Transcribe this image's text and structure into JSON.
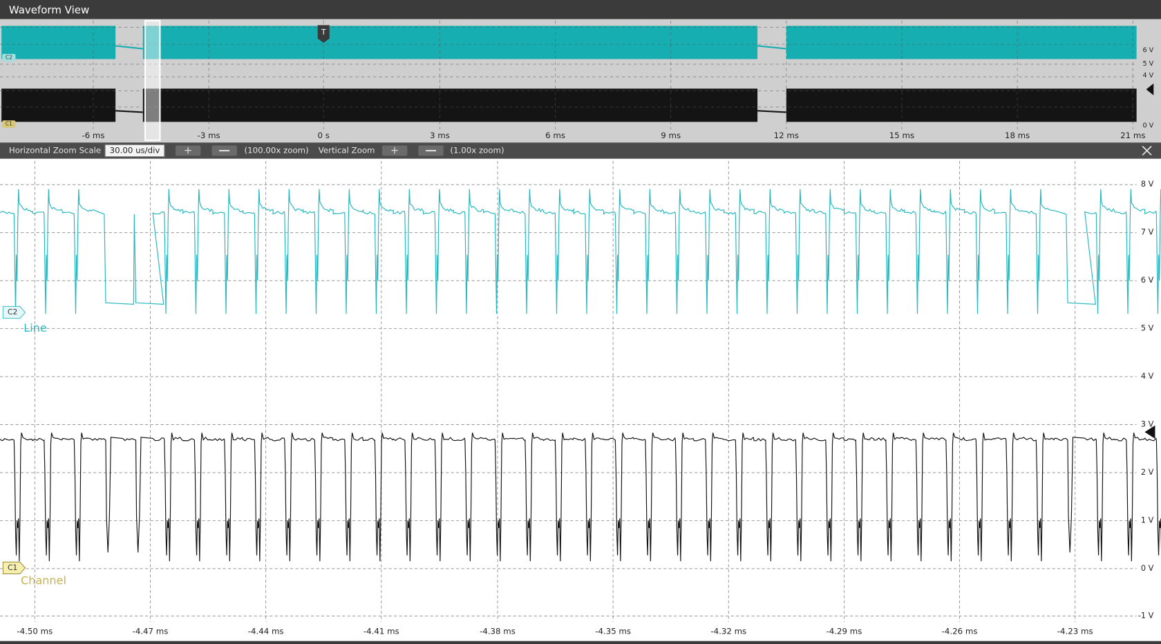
{
  "window": {
    "title": "Waveform View"
  },
  "overview": {
    "x_labels": [
      "-6 ms",
      "-3 ms",
      "0 s",
      "3 ms",
      "6 ms",
      "9 ms",
      "12 ms",
      "15 ms",
      "18 ms",
      "21 ms"
    ],
    "y_labels": [
      "6 V",
      "5 V",
      "4 V",
      "0 V"
    ],
    "channel_tags": [
      "C2",
      "C1"
    ],
    "trigger": "T"
  },
  "toolbar": {
    "horizontal_zoom_label": "Horizontal Zoom Scale",
    "horizontal_scale": "30.00 us/div",
    "horizontal_zoom": "(100.00x zoom)",
    "vertical_zoom_label": "Vertical Zoom",
    "vertical_zoom": "(1.00x zoom)"
  },
  "plot": {
    "y_labels": [
      "8 V",
      "7 V",
      "6 V",
      "5 V",
      "4 V",
      "3 V",
      "2 V",
      "1 V",
      "0 V",
      "-1 V"
    ],
    "x_labels": [
      "-4.50 ms",
      "-4.47 ms",
      "-4.44 ms",
      "-4.41 ms",
      "-4.38 ms",
      "-4.35 ms",
      "-4.32 ms",
      "-4.29 ms",
      "-4.26 ms",
      "-4.23 ms"
    ],
    "channels": [
      {
        "tag": "C2",
        "name": "Line"
      },
      {
        "tag": "C1",
        "name": "Channel"
      }
    ]
  }
}
